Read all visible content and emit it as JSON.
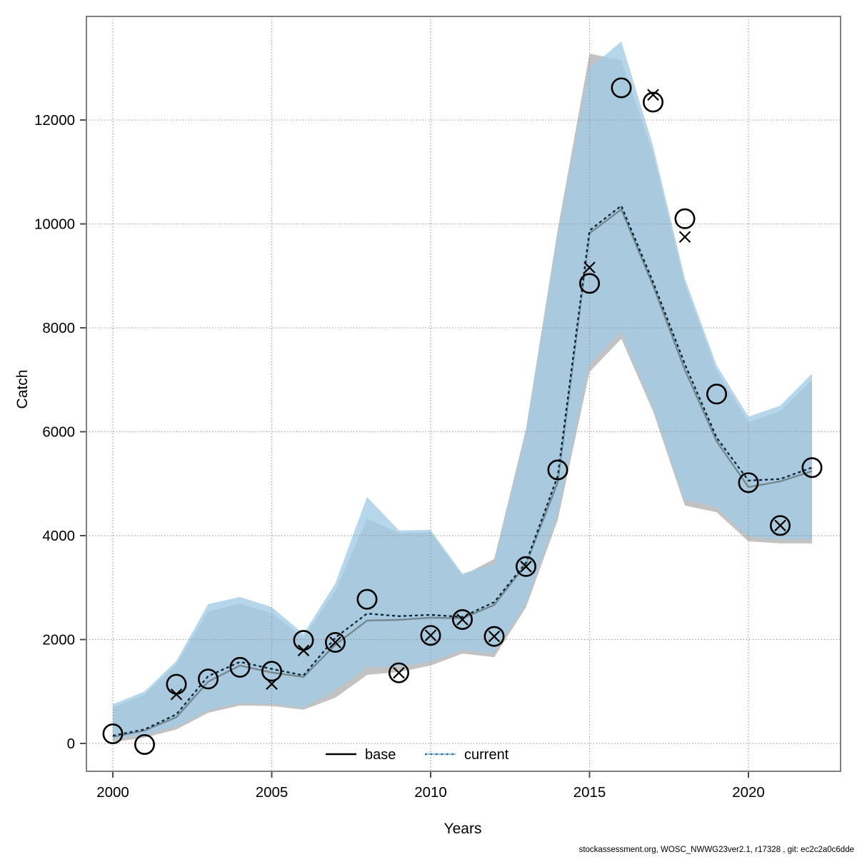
{
  "footer": {
    "text": "stockassessment.org, WOSC_NWWG23ver2.1, r17328 , git: ec2c2a0c6dde"
  },
  "colors": {
    "band_base": "#c2c2c2",
    "band_current": "#a2cce5",
    "band_current_opacity": 0.78,
    "line_base_plot": "#74878f",
    "line_current_blue": "#8fc6e0",
    "line_current_dots": "#10202c",
    "legend_base": "#000000",
    "marker": "#000000",
    "grid": "#8a8a8a",
    "border": "#7f7f7f",
    "tick": "#4d4d4d"
  },
  "chart_data": {
    "type": "line",
    "title": "",
    "xlabel": "Years",
    "ylabel": "Catch",
    "grid": "dotted",
    "legend": [
      {
        "label": "base",
        "style": "solid-black"
      },
      {
        "label": "current",
        "style": "dotted-blue"
      }
    ],
    "x_ticks": [
      2000,
      2005,
      2010,
      2015,
      2020
    ],
    "y_ticks": [
      0,
      2000,
      4000,
      6000,
      8000,
      10000,
      12000
    ],
    "xlim": [
      1999.2,
      2022.9
    ],
    "ylim": [
      -550,
      13750
    ],
    "years": [
      2000,
      2001,
      2002,
      2003,
      2004,
      2005,
      2006,
      2007,
      2008,
      2009,
      2010,
      2011,
      2012,
      2013,
      2014,
      2015,
      2016,
      2017,
      2018,
      2019,
      2020,
      2021,
      2022
    ],
    "series": [
      {
        "name": "base_median",
        "values": [
          130,
          250,
          505,
          1190,
          1500,
          1365,
          1280,
          1900,
          2365,
          2380,
          2420,
          2410,
          2665,
          3450,
          5030,
          9820,
          10280,
          8810,
          7190,
          5815,
          4935,
          5045,
          5240
        ]
      },
      {
        "name": "current_median",
        "values": [
          150,
          270,
          560,
          1295,
          1570,
          1435,
          1310,
          2035,
          2500,
          2450,
          2475,
          2435,
          2720,
          3480,
          5150,
          9875,
          10350,
          8880,
          7300,
          5885,
          5060,
          5090,
          5310
        ]
      },
      {
        "name": "base_lo",
        "values": [
          25,
          110,
          270,
          590,
          730,
          720,
          650,
          880,
          1320,
          1375,
          1500,
          1730,
          1660,
          2620,
          4300,
          7150,
          7790,
          6390,
          4580,
          4450,
          3890,
          3850,
          3850
        ]
      },
      {
        "name": "base_hi",
        "values": [
          690,
          940,
          1530,
          2540,
          2690,
          2510,
          2030,
          2940,
          4330,
          4050,
          4060,
          3230,
          3550,
          6050,
          9900,
          13280,
          13150,
          11350,
          8840,
          7170,
          6180,
          6400,
          7000
        ]
      },
      {
        "name": "current_lo",
        "values": [
          80,
          165,
          330,
          640,
          780,
          760,
          690,
          1015,
          1460,
          1485,
          1570,
          1800,
          1730,
          2695,
          4410,
          7290,
          7905,
          6500,
          4690,
          4550,
          3975,
          3930,
          3930
        ]
      },
      {
        "name": "current_hi",
        "values": [
          755,
          1000,
          1590,
          2680,
          2820,
          2625,
          2110,
          3080,
          4745,
          4100,
          4110,
          3270,
          3450,
          5950,
          9750,
          13000,
          13510,
          11500,
          8950,
          7280,
          6290,
          6500,
          7120
        ]
      },
      {
        "name": "observed_catch_circles",
        "values": [
          185,
          -20,
          1140,
          1240,
          1465,
          1390,
          1985,
          1945,
          2775,
          1360,
          2080,
          2385,
          2060,
          3405,
          5265,
          8855,
          12620,
          12345,
          10100,
          6725,
          5020,
          4195,
          5310
        ]
      },
      {
        "name": "observed_catch_crosses",
        "values": [
          null,
          null,
          945,
          null,
          null,
          1145,
          1790,
          1945,
          null,
          1360,
          2080,
          2385,
          2060,
          3405,
          null,
          9160,
          null,
          12485,
          9750,
          null,
          null,
          4195,
          null
        ]
      }
    ]
  }
}
